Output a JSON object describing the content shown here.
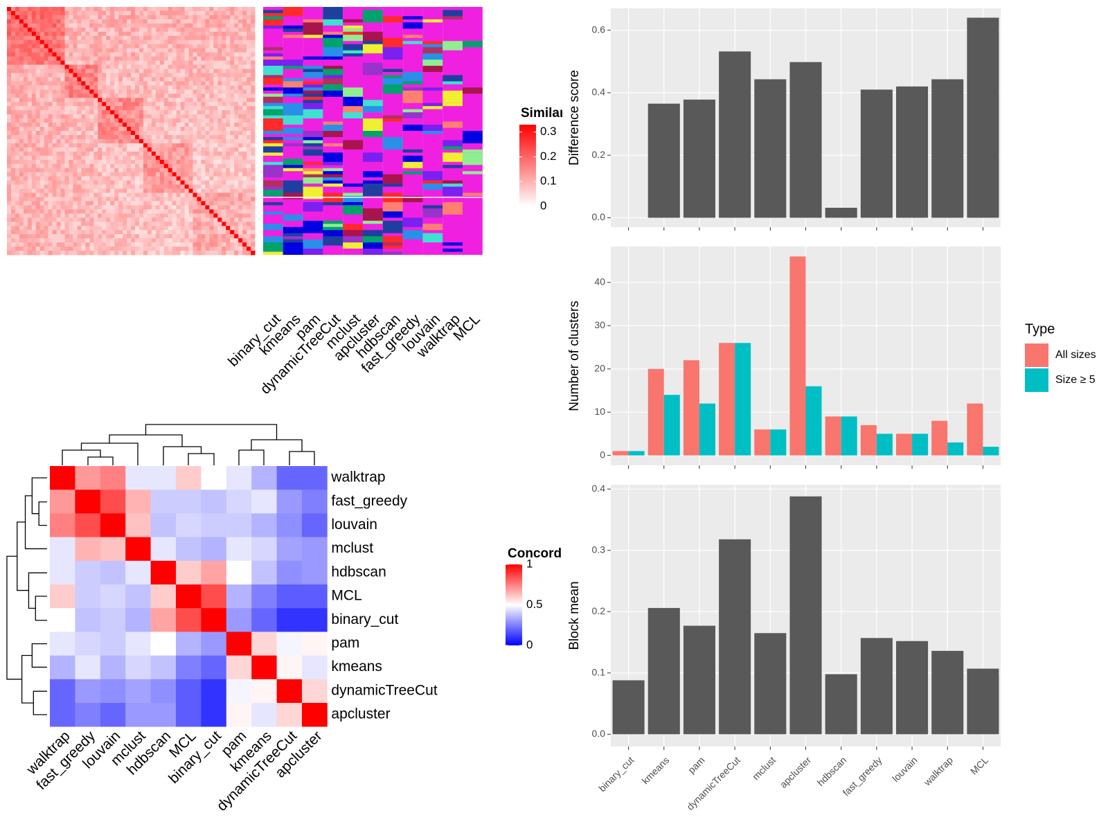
{
  "chart_data": [
    {
      "type": "similarity",
      "legend_title": "Similarity",
      "legend_ticks": [
        0,
        0.1,
        0.2,
        0.3
      ],
      "legend_lim": [
        0,
        0.33
      ],
      "color": "#ff0000",
      "columns": [
        "binary_cut",
        "kmeans",
        "pam",
        "dynamicTreeCut",
        "mclust",
        "apcluster",
        "hdbscan",
        "fast_greedy",
        "louvain",
        "walktrap",
        "MCL"
      ]
    },
    {
      "type": "heatmap",
      "legend_title": "Concordance",
      "legend_lim": [
        0,
        1
      ],
      "legend_ticks": [
        0,
        0.5,
        1
      ],
      "colors": [
        "#0000ff",
        "#ffffff",
        "#ff0000"
      ],
      "rows": [
        "walktrap",
        "fast_greedy",
        "louvain",
        "mclust",
        "hdbscan",
        "MCL",
        "binary_cut",
        "pam",
        "kmeans",
        "dynamicTreeCut",
        "apcluster"
      ],
      "columns": [
        "walktrap",
        "fast_greedy",
        "louvain",
        "mclust",
        "hdbscan",
        "MCL",
        "binary_cut",
        "pam",
        "kmeans",
        "dynamicTreeCut",
        "apcluster"
      ],
      "values": [
        [
          1,
          0.7,
          0.75,
          0.45,
          0.45,
          0.6,
          0.5,
          0.45,
          0.35,
          0.2,
          0.2
        ],
        [
          0.7,
          1,
          0.85,
          0.65,
          0.4,
          0.4,
          0.38,
          0.42,
          0.45,
          0.3,
          0.25
        ],
        [
          0.75,
          0.85,
          1,
          0.62,
          0.38,
          0.42,
          0.4,
          0.4,
          0.35,
          0.28,
          0.2
        ],
        [
          0.45,
          0.65,
          0.62,
          1,
          0.45,
          0.38,
          0.35,
          0.45,
          0.42,
          0.32,
          0.3
        ],
        [
          0.45,
          0.4,
          0.38,
          0.45,
          1,
          0.6,
          0.68,
          0.5,
          0.38,
          0.28,
          0.3
        ],
        [
          0.6,
          0.4,
          0.42,
          0.38,
          0.6,
          1,
          0.85,
          0.35,
          0.25,
          0.18,
          0.18
        ],
        [
          0.5,
          0.38,
          0.4,
          0.35,
          0.68,
          0.85,
          1,
          0.3,
          0.2,
          0.1,
          0.1
        ],
        [
          0.45,
          0.42,
          0.4,
          0.45,
          0.5,
          0.35,
          0.3,
          1,
          0.58,
          0.48,
          0.52
        ],
        [
          0.35,
          0.45,
          0.35,
          0.42,
          0.38,
          0.25,
          0.2,
          0.58,
          1,
          0.52,
          0.45
        ],
        [
          0.2,
          0.3,
          0.28,
          0.32,
          0.28,
          0.18,
          0.1,
          0.48,
          0.52,
          1,
          0.58
        ],
        [
          0.2,
          0.25,
          0.2,
          0.3,
          0.3,
          0.18,
          0.1,
          0.52,
          0.45,
          0.58,
          1
        ]
      ]
    },
    {
      "type": "bar",
      "y_label": "Difference score",
      "values": [
        0,
        0.365,
        0.378,
        0.532,
        0.443,
        0.498,
        0.032,
        0.41,
        0.42,
        0.443,
        0.64
      ],
      "color": "#595959",
      "ylim": [
        -0.03,
        0.67
      ],
      "yticks": [
        {
          "value": 0,
          "label": "0.0"
        },
        0.2,
        0.4,
        0.6
      ]
    },
    {
      "type": "grouped_bar",
      "y_label": "Number of clusters",
      "legend_title": "Type",
      "series": [
        {
          "name": "All sizes",
          "color": "#F8766D",
          "values": [
            1,
            20,
            22,
            26,
            6,
            46,
            9,
            7,
            5,
            8,
            12
          ]
        },
        {
          "name": "Size ≥ 5",
          "color": "#00BFC4",
          "values": [
            1,
            14,
            12,
            26,
            6,
            16,
            9,
            5,
            5,
            3,
            2
          ]
        }
      ],
      "ylim": [
        -2.3,
        48.3
      ],
      "yticks": [
        0,
        10,
        20,
        30,
        40
      ]
    },
    {
      "type": "bar",
      "y_label": "Block mean",
      "categories": [
        "binary_cut",
        "kmeans",
        "pam",
        "dynamicTreeCut",
        "mclust",
        "apcluster",
        "hdbscan",
        "fast_greedy",
        "louvain",
        "walktrap",
        "MCL"
      ],
      "values": [
        0.088,
        0.206,
        0.177,
        0.318,
        0.165,
        0.388,
        0.098,
        0.157,
        0.152,
        0.136,
        0.107
      ],
      "color": "#595959",
      "ylim": [
        -0.02,
        0.407
      ],
      "yticks": [
        {
          "value": 0,
          "label": "0.0"
        },
        0.1,
        0.2,
        0.3,
        0.4
      ]
    }
  ]
}
